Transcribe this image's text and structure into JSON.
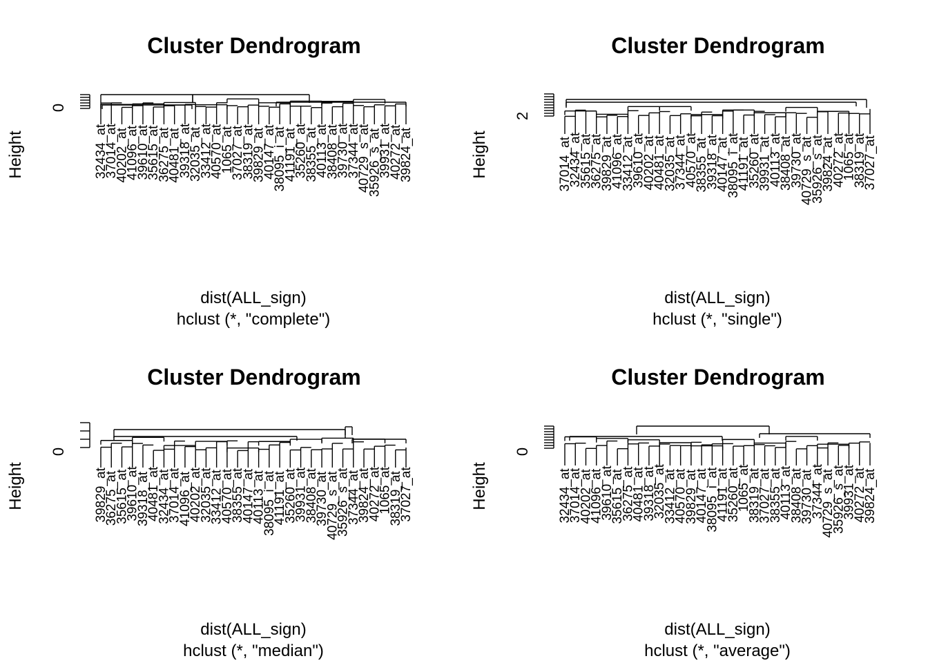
{
  "chart_data": [
    {
      "type": "dendrogram",
      "title": "Cluster Dendrogram",
      "xlabel": "dist(ALL_sign)",
      "sub": "hclust (*, \"complete\")",
      "ylabel": "Height",
      "yticks": [
        "0"
      ],
      "leaf_labels": [
        "32434_at",
        "37014_at",
        "40202_at",
        "41096_at",
        "39610_at",
        "35615_at",
        "36275_at",
        "40481_at",
        "39318_at",
        "32035_at",
        "33412_at",
        "40570_at",
        "1065_at",
        "37027_at",
        "38319_at",
        "39829_at",
        "40147_at",
        "38095_i_at",
        "41191_at",
        "35260_at",
        "38355_at",
        "40113_at",
        "38408_at",
        "39730_at",
        "37344_at",
        "40729_s_at",
        "35926_s_at",
        "39931_at",
        "40272_at",
        "39824_at"
      ]
    },
    {
      "type": "dendrogram",
      "title": "Cluster Dendrogram",
      "xlabel": "dist(ALL_sign)",
      "sub": "hclust (*, \"single\")",
      "ylabel": "Height",
      "yticks": [
        "2"
      ],
      "leaf_labels": [
        "37014_at",
        "32434_at",
        "35615_at",
        "36275_at",
        "39829_at",
        "41096_at",
        "33412_at",
        "39610_at",
        "40202_at",
        "40481_at",
        "32035_at",
        "37344_at",
        "40570_at",
        "38355_at",
        "39318_at",
        "40147_at",
        "38095_i_at",
        "41191_at",
        "35260_at",
        "39931_at",
        "40113_at",
        "38408_at",
        "39730_at",
        "40729_s_at",
        "35926_s_at",
        "39824_at",
        "40272_at",
        "1065_at",
        "38319_at",
        "37027_at"
      ]
    },
    {
      "type": "dendrogram",
      "title": "Cluster Dendrogram",
      "xlabel": "dist(ALL_sign)",
      "sub": "hclust (*, \"median\")",
      "ylabel": "Height",
      "yticks": [
        "0"
      ],
      "leaf_labels": [
        "39829_at",
        "36275_at",
        "35615_at",
        "39610_at",
        "39318_at",
        "40481_at",
        "32434_at",
        "37014_at",
        "41096_at",
        "40202_at",
        "32035_at",
        "33412_at",
        "40570_at",
        "38355_at",
        "40147_at",
        "40113_at",
        "38095_i_at",
        "41191_at",
        "35260_at",
        "39931_at",
        "38408_at",
        "39730_at",
        "40729_s_at",
        "35926_s_at",
        "37344_at",
        "39824_at",
        "40272_at",
        "1065_at",
        "38319_at",
        "37027_at"
      ]
    },
    {
      "type": "dendrogram",
      "title": "Cluster Dendrogram",
      "xlabel": "dist(ALL_sign)",
      "sub": "hclust (*, \"average\")",
      "ylabel": "Height",
      "yticks": [
        "0"
      ],
      "leaf_labels": [
        "32434_at",
        "37014_at",
        "40202_at",
        "41096_at",
        "39610_at",
        "35615_at",
        "36275_at",
        "40481_at",
        "39318_at",
        "32035_at",
        "33412_at",
        "40570_at",
        "39829_at",
        "40147_at",
        "38095_i_at",
        "41191_at",
        "35260_at",
        "1065_at",
        "38319_at",
        "37027_at",
        "38355_at",
        "40113_at",
        "38408_at",
        "39730_at",
        "37344_at",
        "40729_s_at",
        "35926_s_at",
        "39931_at",
        "40272_at",
        "39824_at"
      ]
    }
  ]
}
